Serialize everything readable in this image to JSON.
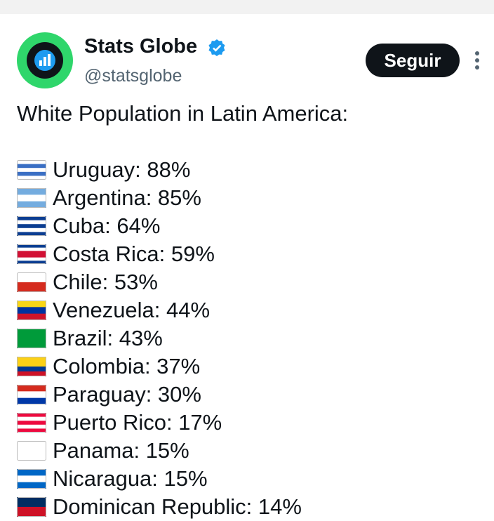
{
  "header": {
    "name": "Stats Globe",
    "handle": "@statsglobe",
    "follow_button": "Seguir"
  },
  "tweet": {
    "intro": "White Population in Latin America:",
    "items": [
      "Uruguay: 88%",
      "Argentina: 85%",
      "Cuba: 64%",
      "Costa Rica: 59%",
      "Chile: 53%",
      "Venezuela: 44%",
      "Brazil: 43%",
      "Colombia: 37%",
      "Paraguay: 30%",
      "Puerto Rico: 17%",
      "Panama: 15%",
      "Nicaragua: 15%",
      "Dominican Republic: 14%"
    ]
  }
}
